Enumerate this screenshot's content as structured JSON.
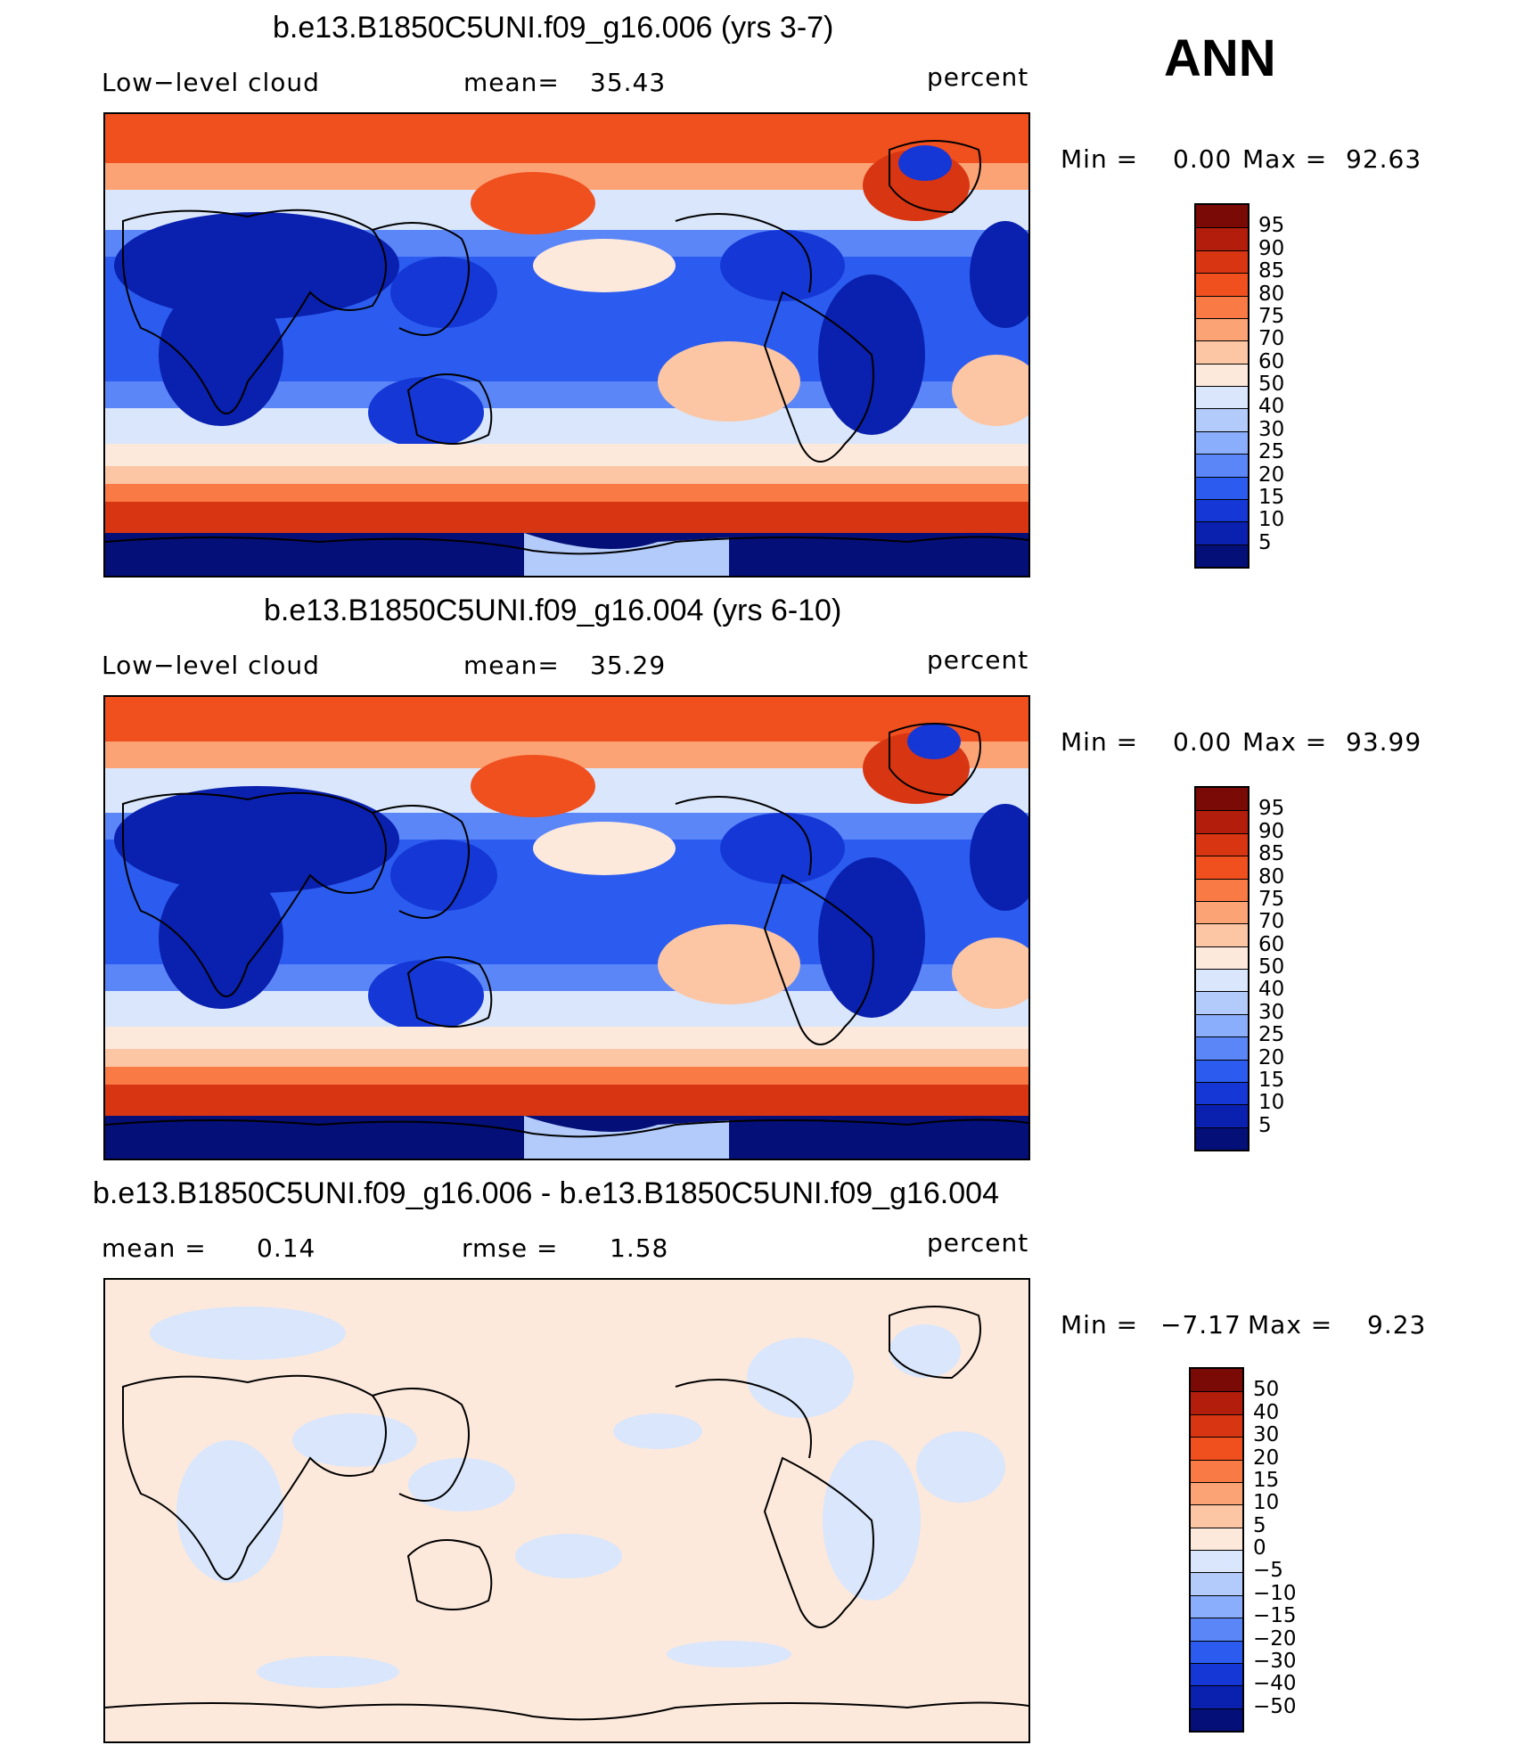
{
  "season": "ANN",
  "panels": [
    {
      "title": "b.e13.B1850C5UNI.f09_g16.006 (yrs 3-7)",
      "left": "Low−level cloud",
      "center_label": "mean=",
      "center_value": "35.43",
      "units": "percent",
      "min_label": "Min =",
      "min_value": "0.00",
      "max_label": "Max =",
      "max_value": "92.63",
      "levels": [
        "95",
        "90",
        "85",
        "80",
        "75",
        "70",
        "60",
        "50",
        "40",
        "30",
        "25",
        "20",
        "15",
        "10",
        "5"
      ],
      "colors": [
        "#7a0a06",
        "#b31e0c",
        "#d83512",
        "#f04f1e",
        "#f97a45",
        "#fca375",
        "#fcc6a4",
        "#fde9dc",
        "#d9e6fb",
        "#b3cbfa",
        "#8aaefb",
        "#5b86f8",
        "#2b5cef",
        "#1437d6",
        "#0a20ae",
        "#050f78"
      ]
    },
    {
      "title": "b.e13.B1850C5UNI.f09_g16.004 (yrs 6-10)",
      "left": "Low−level cloud",
      "center_label": "mean=",
      "center_value": "35.29",
      "units": "percent",
      "min_label": "Min =",
      "min_value": "0.00",
      "max_label": "Max =",
      "max_value": "93.99",
      "levels": [
        "95",
        "90",
        "85",
        "80",
        "75",
        "70",
        "60",
        "50",
        "40",
        "30",
        "25",
        "20",
        "15",
        "10",
        "5"
      ],
      "colors": [
        "#7a0a06",
        "#b31e0c",
        "#d83512",
        "#f04f1e",
        "#f97a45",
        "#fca375",
        "#fcc6a4",
        "#fde9dc",
        "#d9e6fb",
        "#b3cbfa",
        "#8aaefb",
        "#5b86f8",
        "#2b5cef",
        "#1437d6",
        "#0a20ae",
        "#050f78"
      ]
    },
    {
      "title": "b.e13.B1850C5UNI.f09_g16.006 - b.e13.B1850C5UNI.f09_g16.004",
      "left": "mean =",
      "left_value": "0.14",
      "center_label": "rmse =",
      "center_value": "1.58",
      "units": "percent",
      "min_label": "Min =",
      "min_value": "−7.17",
      "max_label": "Max =",
      "max_value": "9.23",
      "levels": [
        "50",
        "40",
        "30",
        "20",
        "15",
        "10",
        "5",
        "0",
        "−5",
        "−10",
        "−15",
        "−20",
        "−30",
        "−40",
        "−50"
      ],
      "colors": [
        "#7a0a06",
        "#b31e0c",
        "#d83512",
        "#f04f1e",
        "#f97a45",
        "#fca375",
        "#fcc6a4",
        "#fde9dc",
        "#d9e6fb",
        "#b3cbfa",
        "#8aaefb",
        "#5b86f8",
        "#2b5cef",
        "#1437d6",
        "#0a20ae",
        "#050f78"
      ]
    }
  ]
}
